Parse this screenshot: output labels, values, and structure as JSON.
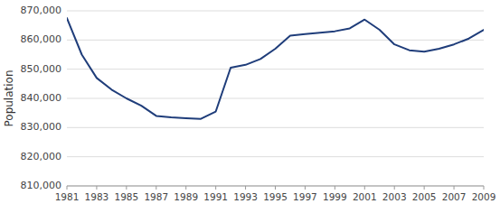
{
  "chart_data": {
    "type": "line",
    "x": [
      1981,
      1982,
      1983,
      1984,
      1985,
      1986,
      1987,
      1988,
      1989,
      1990,
      1991,
      1992,
      1993,
      1994,
      1995,
      1996,
      1997,
      1998,
      1999,
      2000,
      2001,
      2002,
      2003,
      2004,
      2005,
      2006,
      2007,
      2008,
      2009
    ],
    "values": [
      867500,
      855000,
      847000,
      843000,
      840000,
      837500,
      834000,
      833500,
      833200,
      833000,
      835500,
      850500,
      851500,
      853500,
      857000,
      861500,
      862000,
      862500,
      863000,
      864000,
      867000,
      863500,
      858500,
      856500,
      856000,
      857000,
      858500,
      860500,
      863500
    ],
    "color": "#1F3D7A",
    "y_label": "Population",
    "xlim": [
      1981,
      2009
    ],
    "xticks": [
      1981,
      1983,
      1985,
      1987,
      1989,
      1991,
      1993,
      1995,
      1997,
      1999,
      2001,
      2003,
      2005,
      2007,
      2009
    ],
    "ylim": [
      810000,
      870000
    ],
    "yticks": [
      {
        "value": 810000,
        "label": "810,000"
      },
      {
        "value": 820000,
        "label": "820,000"
      },
      {
        "value": 830000,
        "label": "830,000"
      },
      {
        "value": 840000,
        "label": "840,000"
      },
      {
        "value": 850000,
        "label": "850,000"
      },
      {
        "value": 860000,
        "label": "860,000"
      },
      {
        "value": 870000,
        "label": "870,000"
      }
    ],
    "grid": true
  }
}
